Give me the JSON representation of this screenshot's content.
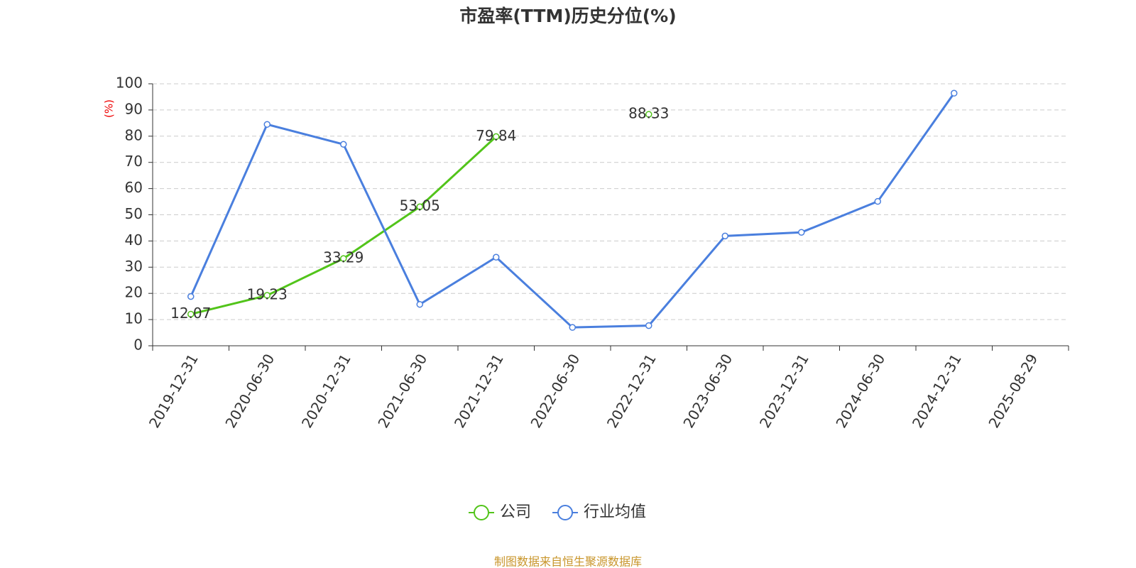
{
  "chart_data": {
    "type": "line",
    "title": "市盈率(TTM)历史分位(%)",
    "y_label": "(%)",
    "footer": "制图数据来自恒生聚源数据库",
    "categories": [
      "2019-12-31",
      "2020-06-30",
      "2020-12-31",
      "2021-06-30",
      "2021-12-31",
      "2022-06-30",
      "2022-12-31",
      "2023-06-30",
      "2023-12-31",
      "2024-06-30",
      "2024-12-31",
      "2025-08-29"
    ],
    "series": [
      {
        "name": "公司",
        "color": "#52c41a",
        "values": [
          12.07,
          19.23,
          33.29,
          53.05,
          79.84,
          null,
          88.33,
          null,
          null,
          null,
          null,
          null
        ],
        "show_labels": true
      },
      {
        "name": "行业均值",
        "color": "#4a7fde",
        "values": [
          18.8,
          84.5,
          76.9,
          15.8,
          33.8,
          7.0,
          7.7,
          41.9,
          43.3,
          55.1,
          96.4,
          null
        ],
        "show_labels": false
      }
    ],
    "ylim": [
      0,
      100
    ],
    "yticks": [
      0,
      10,
      20,
      30,
      40,
      50,
      60,
      70,
      80,
      90,
      100
    ],
    "grid": true
  }
}
